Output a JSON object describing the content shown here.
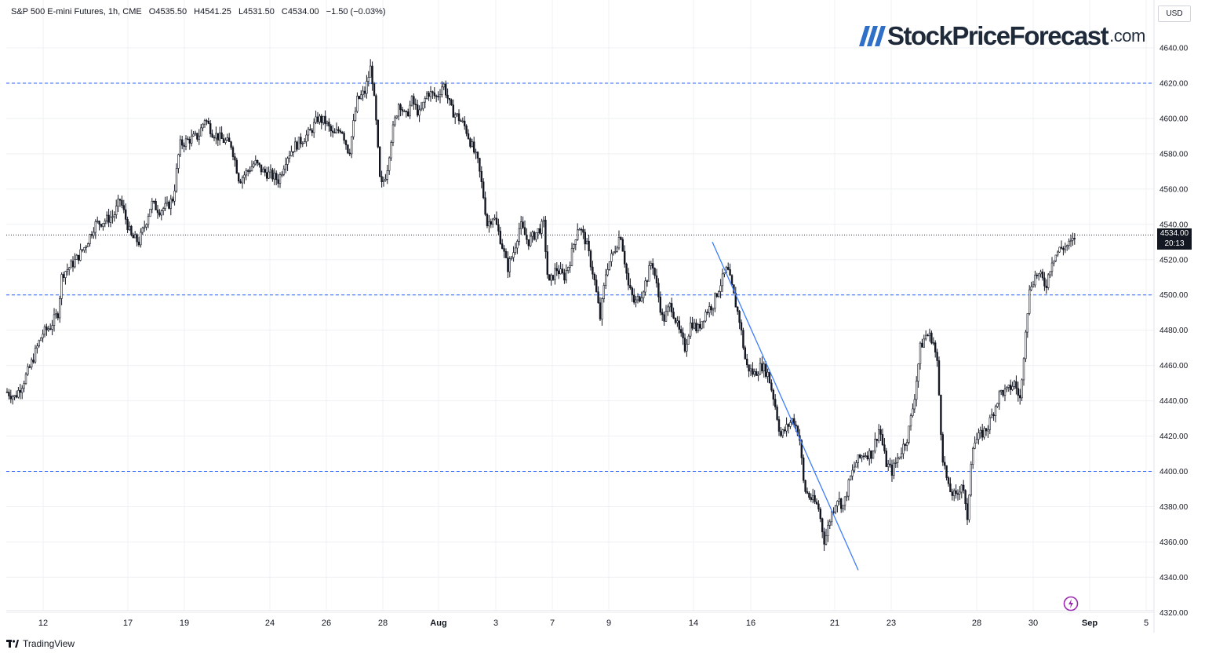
{
  "header": {
    "symbol": "S&P 500 E-mini Futures, 1h, CME",
    "open": "O4535.50",
    "high": "H4541.25",
    "low": "L4531.50",
    "close": "C4534.00",
    "change": "−1.50 (−0.03%)"
  },
  "logo": {
    "name": "StockPriceForecast",
    "suffix": ".com"
  },
  "currency": "USD",
  "last_price": {
    "value": "4534.00",
    "countdown": "20:13"
  },
  "footer": {
    "brand": "TradingView"
  },
  "colors": {
    "candle": "#131722",
    "guide_line": "#2962ff",
    "trend_line": "#3d7cff",
    "grid": "#eef0f3",
    "logo_stripes": "#2f6fc7",
    "flash_icon": "#9c27b0"
  },
  "icons": [
    "tradingview-logo-icon",
    "flash-icon"
  ],
  "chart_data": {
    "type": "candlestick",
    "interval": "1h",
    "y_ticks": [
      4320,
      4340,
      4360,
      4380,
      4400,
      4420,
      4440,
      4460,
      4480,
      4500,
      4520,
      4540,
      4560,
      4580,
      4600,
      4620,
      4640
    ],
    "ylim": [
      4316,
      4664
    ],
    "x_ticks": [
      "12",
      "17",
      "19",
      "24",
      "26",
      "28",
      "Aug",
      "3",
      "7",
      "9",
      "14",
      "16",
      "21",
      "23",
      "28",
      "30",
      "Sep",
      "5"
    ],
    "horizontal_levels": [
      4620,
      4500,
      4400
    ],
    "current_price": 4534.0,
    "price_path": [
      [
        0,
        4445
      ],
      [
        10,
        4442
      ],
      [
        20,
        4450
      ],
      [
        30,
        4460
      ],
      [
        38,
        4470
      ],
      [
        45,
        4478
      ],
      [
        55,
        4482
      ],
      [
        65,
        4490
      ],
      [
        70,
        4512
      ],
      [
        78,
        4515
      ],
      [
        88,
        4520
      ],
      [
        100,
        4528
      ],
      [
        112,
        4540
      ],
      [
        124,
        4542
      ],
      [
        136,
        4545
      ],
      [
        144,
        4554
      ],
      [
        150,
        4545
      ],
      [
        158,
        4533
      ],
      [
        168,
        4530
      ],
      [
        176,
        4540
      ],
      [
        184,
        4552
      ],
      [
        194,
        4548
      ],
      [
        204,
        4550
      ],
      [
        212,
        4555
      ],
      [
        220,
        4585
      ],
      [
        232,
        4588
      ],
      [
        244,
        4590
      ],
      [
        252,
        4600
      ],
      [
        262,
        4592
      ],
      [
        274,
        4588
      ],
      [
        286,
        4585
      ],
      [
        296,
        4565
      ],
      [
        306,
        4570
      ],
      [
        316,
        4575
      ],
      [
        326,
        4570
      ],
      [
        336,
        4568
      ],
      [
        346,
        4565
      ],
      [
        356,
        4578
      ],
      [
        366,
        4584
      ],
      [
        376,
        4588
      ],
      [
        386,
        4592
      ],
      [
        396,
        4600
      ],
      [
        406,
        4598
      ],
      [
        416,
        4590
      ],
      [
        426,
        4595
      ],
      [
        436,
        4580
      ],
      [
        446,
        4610
      ],
      [
        456,
        4615
      ],
      [
        464,
        4630
      ],
      [
        470,
        4600
      ],
      [
        476,
        4560
      ],
      [
        484,
        4570
      ],
      [
        490,
        4590
      ],
      [
        500,
        4610
      ],
      [
        508,
        4600
      ],
      [
        516,
        4610
      ],
      [
        526,
        4602
      ],
      [
        536,
        4615
      ],
      [
        548,
        4612
      ],
      [
        556,
        4620
      ],
      [
        566,
        4605
      ],
      [
        576,
        4600
      ],
      [
        584,
        4595
      ],
      [
        592,
        4585
      ],
      [
        600,
        4575
      ],
      [
        606,
        4560
      ],
      [
        612,
        4540
      ],
      [
        620,
        4545
      ],
      [
        630,
        4530
      ],
      [
        638,
        4515
      ],
      [
        646,
        4525
      ],
      [
        654,
        4540
      ],
      [
        664,
        4530
      ],
      [
        674,
        4535
      ],
      [
        684,
        4540
      ],
      [
        690,
        4505
      ],
      [
        700,
        4515
      ],
      [
        710,
        4510
      ],
      [
        718,
        4520
      ],
      [
        728,
        4540
      ],
      [
        738,
        4530
      ],
      [
        748,
        4510
      ],
      [
        756,
        4487
      ],
      [
        764,
        4515
      ],
      [
        774,
        4525
      ],
      [
        782,
        4535
      ],
      [
        792,
        4505
      ],
      [
        800,
        4495
      ],
      [
        808,
        4500
      ],
      [
        816,
        4510
      ],
      [
        822,
        4520
      ],
      [
        828,
        4505
      ],
      [
        836,
        4485
      ],
      [
        846,
        4495
      ],
      [
        856,
        4480
      ],
      [
        864,
        4470
      ],
      [
        872,
        4485
      ],
      [
        880,
        4480
      ],
      [
        890,
        4490
      ],
      [
        900,
        4495
      ],
      [
        908,
        4505
      ],
      [
        918,
        4515
      ],
      [
        926,
        4500
      ],
      [
        934,
        4485
      ],
      [
        942,
        4460
      ],
      [
        952,
        4455
      ],
      [
        962,
        4460
      ],
      [
        970,
        4455
      ],
      [
        978,
        4440
      ],
      [
        986,
        4420
      ],
      [
        994,
        4425
      ],
      [
        1002,
        4430
      ],
      [
        1010,
        4420
      ],
      [
        1016,
        4390
      ],
      [
        1024,
        4385
      ],
      [
        1034,
        4380
      ],
      [
        1042,
        4360
      ],
      [
        1050,
        4375
      ],
      [
        1058,
        4385
      ],
      [
        1066,
        4380
      ],
      [
        1074,
        4395
      ],
      [
        1082,
        4405
      ],
      [
        1092,
        4410
      ],
      [
        1102,
        4410
      ],
      [
        1112,
        4425
      ],
      [
        1120,
        4405
      ],
      [
        1128,
        4400
      ],
      [
        1138,
        4410
      ],
      [
        1148,
        4420
      ],
      [
        1156,
        4440
      ],
      [
        1164,
        4470
      ],
      [
        1172,
        4478
      ],
      [
        1180,
        4475
      ],
      [
        1186,
        4460
      ],
      [
        1192,
        4410
      ],
      [
        1200,
        4390
      ],
      [
        1210,
        4385
      ],
      [
        1218,
        4395
      ],
      [
        1224,
        4370
      ],
      [
        1230,
        4415
      ],
      [
        1240,
        4420
      ],
      [
        1250,
        4425
      ],
      [
        1258,
        4435
      ],
      [
        1266,
        4445
      ],
      [
        1274,
        4445
      ],
      [
        1284,
        4450
      ],
      [
        1292,
        4440
      ],
      [
        1298,
        4480
      ],
      [
        1304,
        4505
      ],
      [
        1312,
        4512
      ],
      [
        1318,
        4510
      ],
      [
        1324,
        4505
      ],
      [
        1332,
        4520
      ],
      [
        1342,
        4526
      ],
      [
        1352,
        4528
      ],
      [
        1358,
        4530
      ],
      [
        1362,
        4534
      ]
    ],
    "trend_line": [
      [
        908,
        4530
      ],
      [
        1094,
        4344
      ]
    ]
  }
}
